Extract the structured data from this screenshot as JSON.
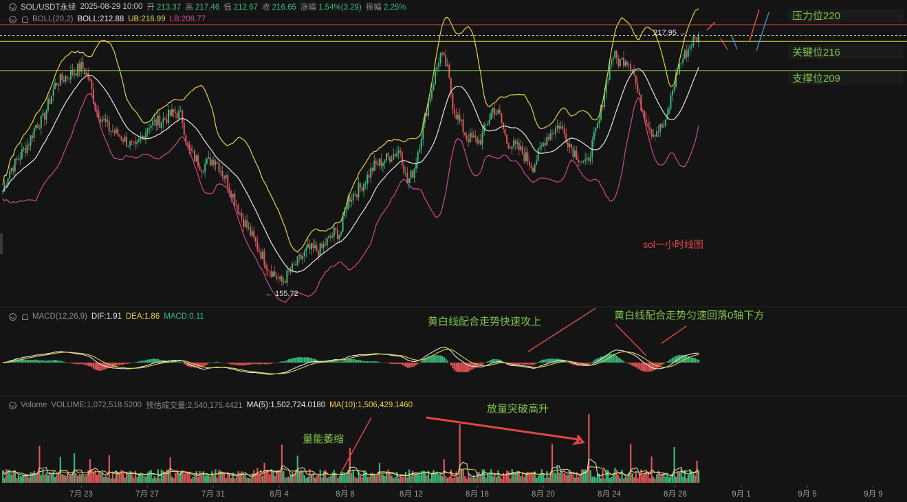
{
  "header": {
    "symbol": "SOL/USDT永续",
    "datetime": "2025-08-29 10:00",
    "open_label": "开",
    "open": "213.37",
    "high_label": "高",
    "high": "217.46",
    "low_label": "低",
    "low": "212.67",
    "close_label": "收",
    "close": "216.65",
    "change_label": "涨幅",
    "change": "1.54%(3.29)",
    "amp_label": "振幅",
    "amp": "2.25%"
  },
  "boll": {
    "name": "BOLL(20,2)",
    "boll": "BOLL:212.88",
    "ub": "UB:216.99",
    "lb": "LB:208.77"
  },
  "macd": {
    "name": "MACD(12,26,9)",
    "dif": "DIF:1.91",
    "dea": "DEA:1.86",
    "macd": "MACD:0.11"
  },
  "volume": {
    "name": "Volume",
    "vol": "VOLUME:1,072,518.5200",
    "est": "预估成交量:2,540,175.4421",
    "ma5": "MA(5):1,502,724.0180",
    "ma10": "MA(10):1,506,429.1460"
  },
  "annotations": {
    "resistance": "压力位220",
    "key_level": "关键位216",
    "support": "支撑位209",
    "chart_caption": "sol一小时线图",
    "macd_note_1": "黄白线配合走势快速攻上",
    "macd_note_2": "黄白线配合走势匀速回落0轴下方",
    "vol_note_1": "量能萎缩",
    "vol_note_2": "放量突破高升",
    "high_marker": "217.95",
    "low_marker": "155.72"
  },
  "colors": {
    "up": "#3ab77b",
    "down": "#e05555",
    "boll_mid": "#e8e8e8",
    "boll_ub": "#e8d34a",
    "boll_lb": "#d14a93",
    "resistance": "#e04848",
    "key": "#e8d34a",
    "support": "#7fc24a",
    "annotation_green": "#7fc24a"
  },
  "chart_data": {
    "type": "candlestick",
    "timeframe": "1h",
    "x_ticks": [
      "7月 23",
      "7月 27",
      "7月 31",
      "8月 4",
      "8月 8",
      "8月 12",
      "8月 16",
      "8月 20",
      "8月 24",
      "8月 28",
      "9月 1",
      "9月 5",
      "9月 9"
    ],
    "price_path": [
      [
        0,
        180
      ],
      [
        1,
        185
      ],
      [
        2,
        187
      ],
      [
        4,
        192
      ],
      [
        5,
        196
      ],
      [
        6,
        197
      ],
      [
        8,
        206
      ],
      [
        10,
        208
      ],
      [
        12,
        210
      ],
      [
        13,
        207
      ],
      [
        14,
        200
      ],
      [
        16,
        195
      ],
      [
        18,
        193
      ],
      [
        20,
        190
      ],
      [
        22,
        196
      ],
      [
        24,
        197
      ],
      [
        26,
        199
      ],
      [
        27,
        198
      ],
      [
        28,
        190
      ],
      [
        30,
        186
      ],
      [
        32,
        188
      ],
      [
        34,
        182
      ],
      [
        36,
        174
      ],
      [
        38,
        168
      ],
      [
        40,
        162
      ],
      [
        41,
        160
      ],
      [
        42,
        158
      ],
      [
        43,
        160
      ],
      [
        44,
        162
      ],
      [
        46,
        166
      ],
      [
        48,
        166
      ],
      [
        50,
        170
      ],
      [
        51,
        170
      ],
      [
        52,
        178
      ],
      [
        54,
        181
      ],
      [
        56,
        186
      ],
      [
        58,
        188
      ],
      [
        60,
        190
      ],
      [
        61,
        182
      ],
      [
        62,
        185
      ],
      [
        64,
        200
      ],
      [
        66,
        213
      ],
      [
        67,
        210
      ],
      [
        68,
        200
      ],
      [
        70,
        193
      ],
      [
        72,
        192
      ],
      [
        74,
        200
      ],
      [
        75,
        198
      ],
      [
        76,
        192
      ],
      [
        78,
        190
      ],
      [
        80,
        186
      ],
      [
        82,
        193
      ],
      [
        84,
        196
      ],
      [
        86,
        190
      ],
      [
        88,
        186
      ],
      [
        90,
        197
      ],
      [
        91,
        206
      ],
      [
        92,
        213
      ],
      [
        93,
        211
      ],
      [
        94,
        212
      ],
      [
        95,
        210
      ],
      [
        96,
        202
      ],
      [
        98,
        194
      ],
      [
        100,
        196
      ],
      [
        101,
        204
      ],
      [
        102,
        210
      ],
      [
        103,
        213
      ],
      [
        104,
        216
      ],
      [
        105,
        217
      ]
    ],
    "high": 217.95,
    "low": 155.72,
    "levels": {
      "resistance": 220,
      "key": 216,
      "support": 209
    },
    "macd_values": {
      "dif": 1.91,
      "dea": 1.86,
      "macd": 0.11
    },
    "volume_values": {
      "volume": 1072518.52,
      "estimated": 2540175.4421,
      "ma5": 1502724.018,
      "ma10": 1506429.146
    }
  }
}
